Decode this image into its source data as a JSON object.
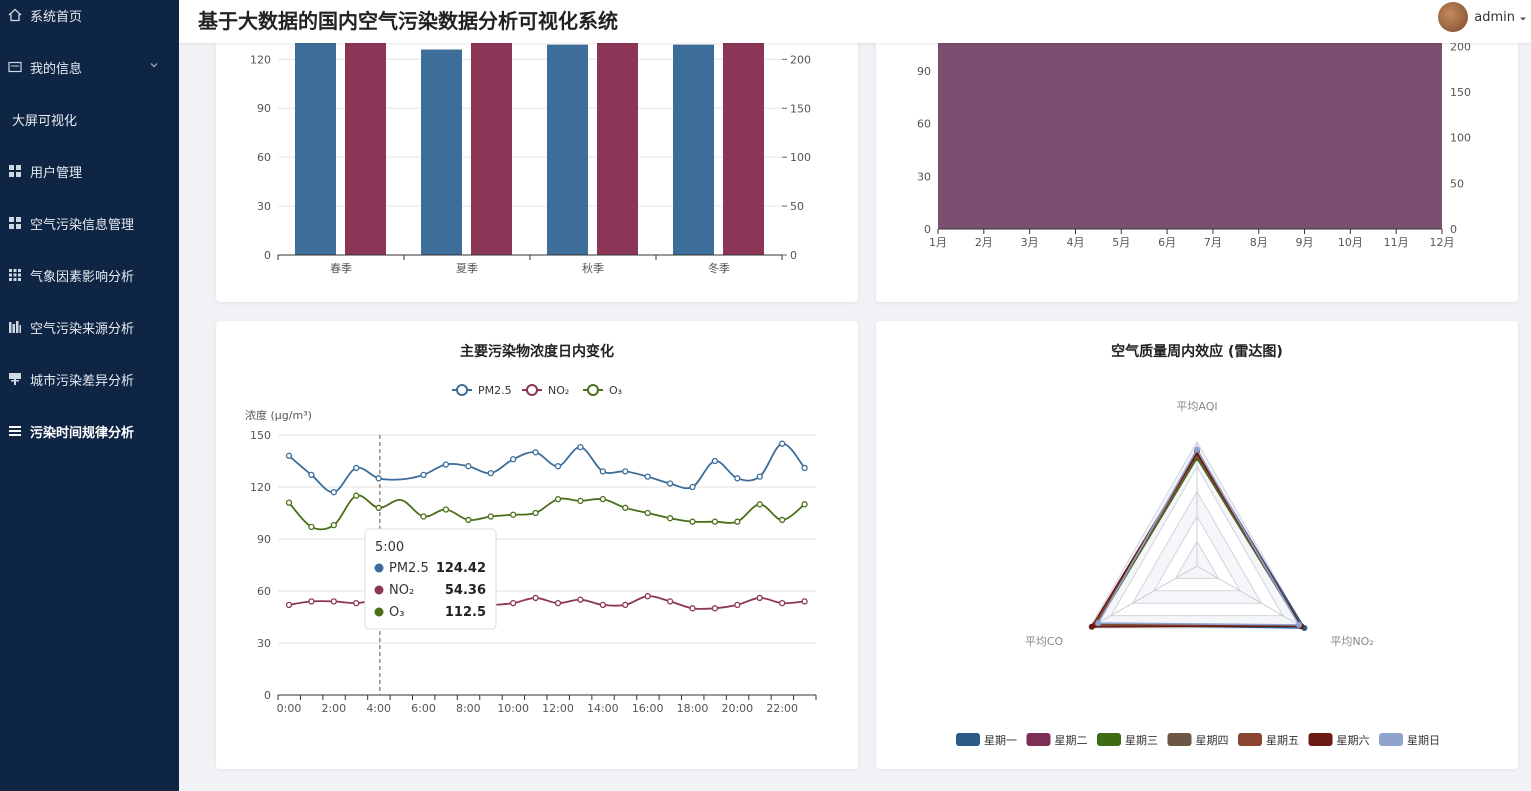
{
  "header": {
    "title": "基于大数据的国内空气污染数据分析可视化系统",
    "username": "admin"
  },
  "sidebar": {
    "items": [
      {
        "label": "系统首页",
        "icon": "home-icon"
      },
      {
        "label": "我的信息",
        "icon": "profile-card-icon"
      },
      {
        "label": "大屏可视化",
        "icon": ""
      },
      {
        "label": "用户管理",
        "icon": "grid-icon"
      },
      {
        "label": "空气污染信息管理",
        "icon": "grid-icon"
      },
      {
        "label": "气象因素影响分析",
        "icon": "apps-icon"
      },
      {
        "label": "空气污染来源分析",
        "icon": "bars-icon"
      },
      {
        "label": "城市污染差异分析",
        "icon": "stand-icon"
      },
      {
        "label": "污染时间规律分析",
        "icon": "list-icon"
      }
    ],
    "active": "污染时间规律分析"
  },
  "colors": {
    "pm25": "#3d6d99",
    "no2": "#8b3557",
    "o3": "#4a6f1a",
    "sidebar_bg": "#0f2544"
  },
  "chart_data": [
    {
      "type": "bar",
      "categories": [
        "春季",
        "夏季",
        "秋季",
        "冬季"
      ],
      "series": [
        {
          "values": [
            140,
            126,
            129,
            129
          ],
          "axis": "left"
        },
        {
          "values": [
            240,
            240,
            240,
            240
          ],
          "axis": "right"
        }
      ],
      "y_left_ticks": [
        "0",
        "30",
        "60",
        "90",
        "120"
      ],
      "y_right_ticks": [
        "0",
        "50",
        "100",
        "150",
        "200"
      ],
      "ylim_left": [
        0,
        130
      ],
      "ylim_right": [
        0,
        216.7
      ]
    },
    {
      "type": "area",
      "categories": [
        "1月",
        "2月",
        "3月",
        "4月",
        "5月",
        "6月",
        "7月",
        "8月",
        "9月",
        "10月",
        "11月",
        "12月"
      ],
      "y_left_ticks": [
        "0",
        "30",
        "60",
        "90"
      ],
      "y_right_ticks": [
        "0",
        "50",
        "100",
        "150",
        "200"
      ],
      "ylim_left": [
        0,
        106
      ],
      "ylim_right": [
        0,
        203.8
      ],
      "fill": "#7b4f70"
    },
    {
      "type": "line",
      "title": "主要污染物浓度日内变化",
      "ylabel": "浓度 (μg/m³)",
      "ylim": [
        0,
        150
      ],
      "y_ticks": [
        "0",
        "30",
        "60",
        "90",
        "120",
        "150"
      ],
      "x_ticks": [
        "0:00",
        "2:00",
        "4:00",
        "6:00",
        "8:00",
        "10:00",
        "12:00",
        "14:00",
        "16:00",
        "18:00",
        "20:00",
        "22:00"
      ],
      "series": [
        {
          "name": "PM2.5",
          "values": [
            138,
            127,
            117,
            131,
            125,
            124.42,
            127,
            133,
            132,
            128,
            136,
            140,
            132,
            143,
            129,
            129,
            126,
            122,
            120,
            135,
            125,
            126,
            145,
            131
          ]
        },
        {
          "name": "NO₂",
          "values": [
            52,
            54,
            54,
            53,
            55,
            54.36,
            52,
            53,
            53,
            52,
            53,
            56,
            53,
            55,
            52,
            52,
            57,
            54,
            50,
            50,
            52,
            56,
            53,
            54
          ]
        },
        {
          "name": "O₃",
          "values": [
            111,
            97,
            98,
            115,
            108,
            112.5,
            103,
            107,
            101,
            103,
            104,
            105,
            113,
            112,
            113,
            108,
            105,
            102,
            100,
            100,
            100,
            110,
            101,
            110
          ]
        }
      ],
      "tooltip": {
        "time": "5:00",
        "rows": [
          {
            "name": "PM2.5",
            "value": "124.42"
          },
          {
            "name": "NO₂",
            "value": "54.36"
          },
          {
            "name": "O₃",
            "value": "112.5"
          }
        ]
      }
    },
    {
      "type": "radar",
      "title": "空气质量周内效应 (雷达图)",
      "indicators": [
        "平均AQI",
        "平均CO",
        "平均NO₂"
      ],
      "series": [
        {
          "name": "星期一",
          "color": "#2b5a87",
          "values": [
            0.92,
            0.95,
            1.0
          ]
        },
        {
          "name": "星期二",
          "color": "#7d2f55",
          "values": [
            0.93,
            0.93,
            0.97
          ]
        },
        {
          "name": "星期三",
          "color": "#3f6b12",
          "values": [
            0.87,
            0.93,
            0.96
          ]
        },
        {
          "name": "星期四",
          "color": "#6b5744",
          "values": [
            0.89,
            0.94,
            0.96
          ]
        },
        {
          "name": "星期五",
          "color": "#8a4530",
          "values": [
            0.9,
            0.95,
            0.97
          ]
        },
        {
          "name": "星期六",
          "color": "#6a1a12",
          "values": [
            0.91,
            0.98,
            0.97
          ]
        },
        {
          "name": "星期日",
          "color": "#8fa3cc",
          "values": [
            0.94,
            0.92,
            0.95
          ]
        }
      ]
    }
  ]
}
